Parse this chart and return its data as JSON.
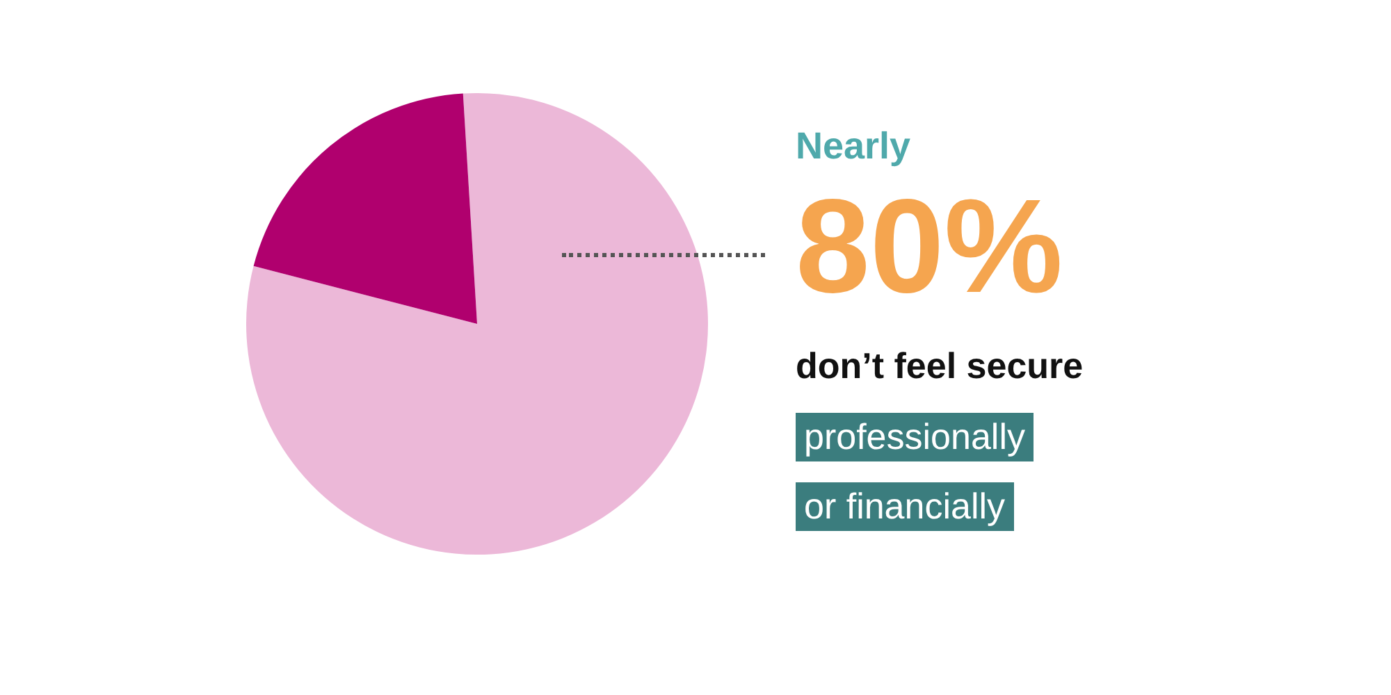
{
  "chart_data": {
    "type": "pie",
    "categories": [
      null,
      null
    ],
    "values": [
      80,
      20
    ],
    "colors": [
      "#ecb8d8",
      "#b0006e"
    ],
    "annotations": [
      "Nearly",
      "80%",
      "don’t feel secure",
      "professionally",
      "or financially"
    ]
  }
}
